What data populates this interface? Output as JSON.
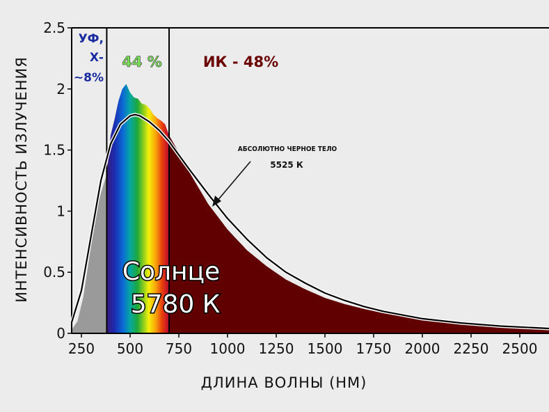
{
  "chart_data": {
    "type": "area",
    "xlabel": "ДЛИНА ВОЛНЫ (НМ)",
    "ylabel": "ИНТЕНСИВНОСТЬ ИЗЛУЧЕНИЯ",
    "xlim": [
      200,
      2650
    ],
    "ylim": [
      0,
      2.5
    ],
    "x_ticks": [
      250,
      500,
      750,
      1000,
      1250,
      1500,
      1750,
      2000,
      2250,
      2500
    ],
    "y_ticks": [
      0,
      0.5,
      1,
      1.5,
      2,
      2.5
    ],
    "y_tick_labels": [
      "0",
      "0.5",
      "1",
      "1.5",
      "2",
      "2.5"
    ],
    "grid": false,
    "bands": [
      {
        "label_lines": [
          "УФ,",
          "Х-",
          "~8%"
        ],
        "from": 200,
        "to": 380,
        "color": "#9a9a9a"
      },
      {
        "label_lines": [
          "44 %"
        ],
        "from": 380,
        "to": 700,
        "color": "spectrum"
      },
      {
        "label_lines": [
          "ИК - 48%"
        ],
        "from": 700,
        "to": 2650,
        "color": "#600000"
      }
    ],
    "series": [
      {
        "name": "Солнце 5780 К",
        "x": [
          200,
          230,
          260,
          290,
          320,
          350,
          380,
          400,
          420,
          440,
          460,
          480,
          500,
          520,
          540,
          560,
          580,
          600,
          620,
          640,
          660,
          680,
          700,
          750,
          800,
          900,
          1000,
          1100,
          1200,
          1300,
          1400,
          1500,
          1600,
          1700,
          1800,
          1900,
          2000,
          2200,
          2400,
          2650
        ],
        "y": [
          0.03,
          0.1,
          0.3,
          0.62,
          0.95,
          1.15,
          1.3,
          1.62,
          1.75,
          1.9,
          2.0,
          2.04,
          1.97,
          1.93,
          1.92,
          1.88,
          1.87,
          1.84,
          1.79,
          1.76,
          1.74,
          1.71,
          1.62,
          1.48,
          1.33,
          1.06,
          0.85,
          0.68,
          0.55,
          0.44,
          0.36,
          0.29,
          0.24,
          0.2,
          0.165,
          0.14,
          0.12,
          0.09,
          0.068,
          0.05
        ]
      },
      {
        "name": "АБСОЛЮТНО ЧЕРНОЕ ТЕЛО 5525 К",
        "x": [
          200,
          250,
          300,
          350,
          400,
          450,
          500,
          525,
          550,
          600,
          650,
          700,
          750,
          800,
          900,
          1000,
          1100,
          1200,
          1300,
          1400,
          1500,
          1600,
          1700,
          1800,
          1900,
          2000,
          2200,
          2400,
          2650
        ],
        "y": [
          0.09,
          0.35,
          0.8,
          1.25,
          1.55,
          1.71,
          1.78,
          1.79,
          1.78,
          1.73,
          1.66,
          1.57,
          1.46,
          1.35,
          1.14,
          0.94,
          0.77,
          0.62,
          0.5,
          0.41,
          0.33,
          0.27,
          0.22,
          0.18,
          0.15,
          0.12,
          0.085,
          0.06,
          0.04
        ]
      }
    ],
    "sun_label_lines": [
      "Солнце",
      "5780 К"
    ],
    "blackbody_label": "АБСОЛЮТНО ЧЕРНОЕ ТЕЛО",
    "blackbody_temp": "5525 К"
  }
}
